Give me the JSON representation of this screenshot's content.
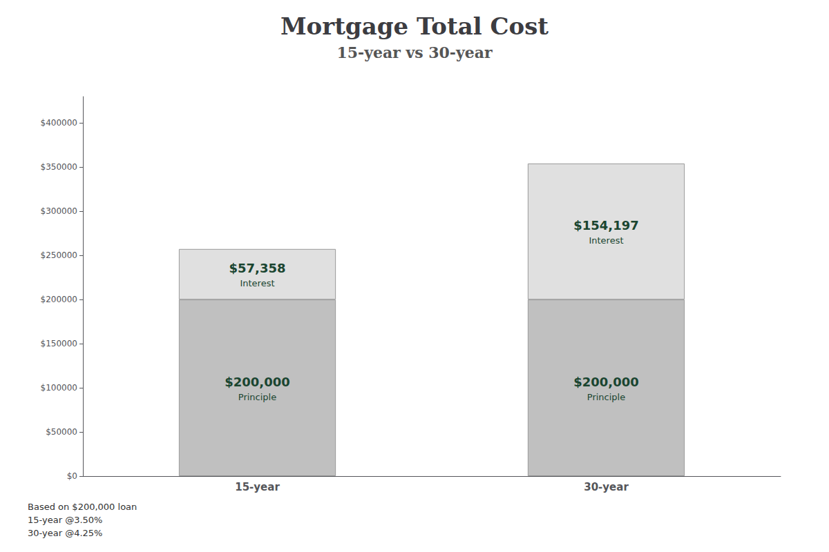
{
  "chart_data": {
    "type": "bar",
    "title": "Mortgage Total Cost",
    "subtitle": "15-year vs 30-year",
    "categories": [
      "15-year",
      "30-year"
    ],
    "series": [
      {
        "name": "Principle",
        "color": "#c0c0c0",
        "values": [
          200000,
          200000
        ],
        "value_labels": [
          "$200,000",
          "$200,000"
        ]
      },
      {
        "name": "Interest",
        "color": "#e0e0e0",
        "values": [
          57358,
          154197
        ],
        "value_labels": [
          "$57,358",
          "$154,197"
        ]
      }
    ],
    "stacked": true,
    "data_labels": true,
    "ylim": [
      0,
      430000
    ],
    "yticks": [
      {
        "value": 0,
        "label": "$0"
      },
      {
        "value": 50000,
        "label": "$50000"
      },
      {
        "value": 100000,
        "label": "$100000"
      },
      {
        "value": 150000,
        "label": "$150000"
      },
      {
        "value": 200000,
        "label": "$200000"
      },
      {
        "value": 250000,
        "label": "$250000"
      },
      {
        "value": 300000,
        "label": "$300000"
      },
      {
        "value": 350000,
        "label": "$350000"
      },
      {
        "value": 400000,
        "label": "$400000"
      }
    ],
    "annotations": [
      "Based on $200,000 loan",
      "15-year @3.50%",
      "30-year @4.25%"
    ],
    "grid": false
  }
}
